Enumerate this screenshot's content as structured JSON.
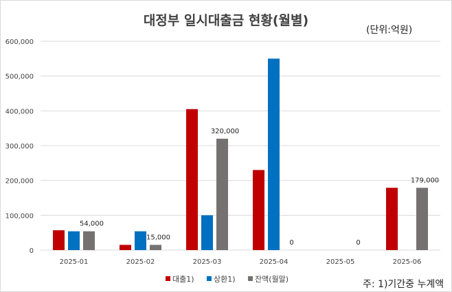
{
  "chart_data": {
    "type": "bar",
    "title": "대정부 일시대출금 현황(월별)",
    "unit_label": "(단위:억원)",
    "note": "주: 1)기간중 누계액",
    "categories": [
      "2025-01",
      "2025-02",
      "2025-03",
      "2025-04",
      "2025-05",
      "2025-06"
    ],
    "ylim": [
      0,
      600000
    ],
    "yticks": [
      "0",
      "100,000",
      "200,000",
      "300,000",
      "400,000",
      "500,000",
      "600,000"
    ],
    "grid": true,
    "legend_position": "bottom",
    "series": [
      {
        "name": "대출1)",
        "color": "#c00000",
        "values": [
          57000,
          15000,
          405000,
          230000,
          0,
          179000
        ]
      },
      {
        "name": "상환1)",
        "color": "#0070c0",
        "values": [
          54000,
          54000,
          100000,
          550000,
          0,
          0
        ]
      },
      {
        "name": "잔액(월말)",
        "color": "#767171",
        "values": [
          54000,
          15000,
          320000,
          0,
          0,
          179000
        ]
      }
    ],
    "data_labels": [
      "54,000",
      "15,000",
      "320,000",
      "0",
      "0",
      "179,000"
    ]
  }
}
